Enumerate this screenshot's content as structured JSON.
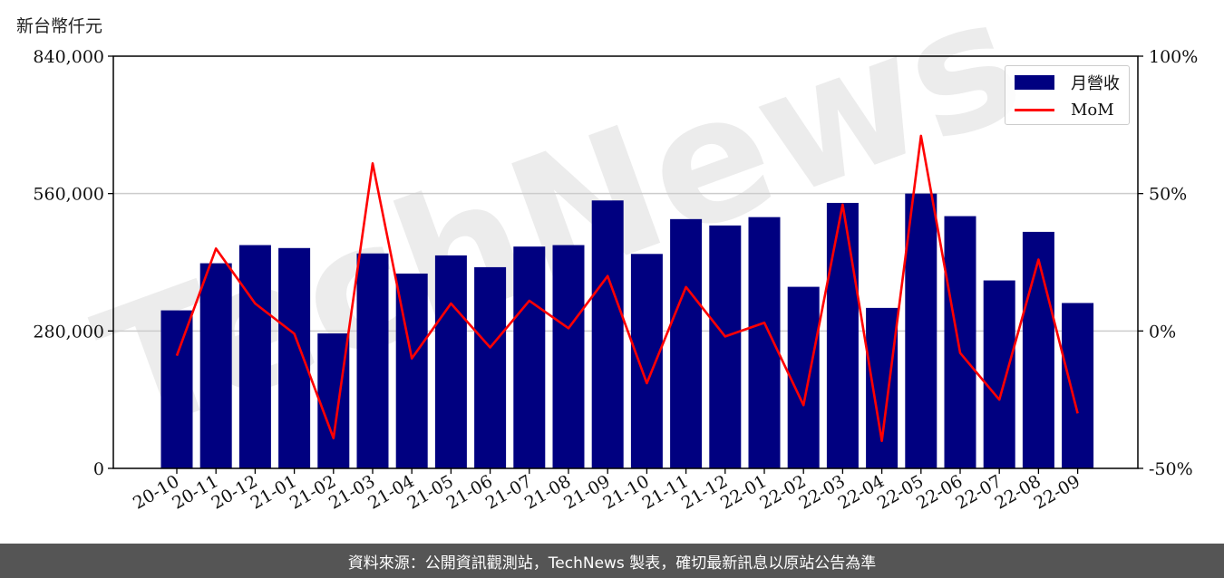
{
  "unit_label": "新台幣仟元",
  "footer_text": "資料來源：公開資訊觀測站，TechNews 製表，確切最新訊息以原站公告為準",
  "watermark": "TechNews",
  "colors": {
    "bar": "#000080",
    "line": "#ff0000",
    "grid": "#cccccc",
    "footer_bg": "#555555"
  },
  "chart_data": {
    "type": "bar",
    "categories": [
      "20-10",
      "20-11",
      "20-12",
      "21-01",
      "21-02",
      "21-03",
      "21-04",
      "21-05",
      "21-06",
      "21-07",
      "21-08",
      "21-09",
      "21-10",
      "21-11",
      "21-12",
      "22-01",
      "22-02",
      "22-03",
      "22-04",
      "22-05",
      "22-06",
      "22-07",
      "22-08",
      "22-09"
    ],
    "series": [
      {
        "name": "月營收",
        "axis": "left",
        "type": "bar",
        "values": [
          322000,
          418000,
          455000,
          449000,
          275000,
          438000,
          397000,
          434000,
          410000,
          452000,
          455000,
          546000,
          437000,
          508000,
          495000,
          512000,
          370000,
          541000,
          327000,
          560000,
          514000,
          383000,
          482000,
          337000
        ]
      },
      {
        "name": "MoM",
        "axis": "right",
        "type": "line",
        "values": [
          -9,
          30,
          10,
          -1,
          -39,
          61,
          -10,
          10,
          -6,
          11,
          1,
          20,
          -19,
          16,
          -2,
          3,
          -27,
          46,
          -40,
          71,
          -8,
          -25,
          26,
          -30
        ]
      }
    ],
    "y_left": {
      "ylim": [
        0,
        840000
      ],
      "ticks": [
        "0",
        "280,000",
        "560,000",
        "840,000"
      ],
      "tick_values": [
        0,
        280000,
        560000,
        840000
      ]
    },
    "y_right": {
      "ylim": [
        -50,
        100
      ],
      "ticks": [
        "-50%",
        "0%",
        "50%",
        "100%"
      ],
      "tick_values": [
        -50,
        0,
        50,
        100
      ]
    },
    "grid": "horizontal",
    "legend_position": "top-right"
  }
}
